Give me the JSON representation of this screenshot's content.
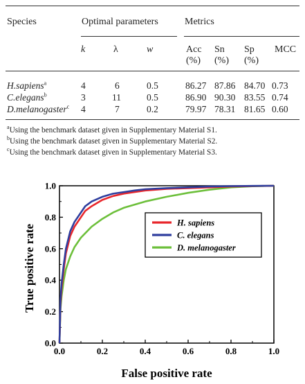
{
  "table": {
    "headers": {
      "species": "Species",
      "optimal_parameters": "Optimal parameters",
      "metrics": "Metrics"
    },
    "subheaders": {
      "k": "k",
      "lambda": "λ",
      "w": "w",
      "acc": [
        "Acc",
        "(%)"
      ],
      "sn": [
        "Sn",
        "(%)"
      ],
      "sp": [
        "Sp",
        "(%)"
      ],
      "mcc": "MCC"
    },
    "rows": [
      {
        "species": "H.sapiens",
        "sup": "a",
        "k": "4",
        "lambda": "6",
        "w": "0.5",
        "acc": "86.27",
        "sn": "87.86",
        "sp": "84.70",
        "mcc": "0.73"
      },
      {
        "species": "C.elegans",
        "sup": "b",
        "k": "3",
        "lambda": "11",
        "w": "0.5",
        "acc": "86.90",
        "sn": "90.30",
        "sp": "83.55",
        "mcc": "0.74"
      },
      {
        "species": "D.melanogaster",
        "sup": "c",
        "k": "4",
        "lambda": "7",
        "w": "0.2",
        "acc": "79.97",
        "sn": "78.31",
        "sp": "81.65",
        "mcc": "0.60"
      }
    ],
    "footnotes": [
      {
        "mark": "a",
        "text": "Using the benchmark dataset given in Supplementary Material S1."
      },
      {
        "mark": "b",
        "text": "Using the benchmark dataset given in Supplementary Material S2."
      },
      {
        "mark": "c",
        "text": "Using the benchmark dataset given in Supplementary Material S3."
      }
    ]
  },
  "chart_data": {
    "type": "line",
    "xlabel": "False positive rate",
    "ylabel": "True positive rate",
    "xlim": [
      0.0,
      1.0
    ],
    "ylim": [
      0.0,
      1.0
    ],
    "xticks": [
      "0.0",
      "0.2",
      "0.4",
      "0.6",
      "0.8",
      "1.0"
    ],
    "yticks": [
      "0.0",
      "0.2",
      "0.4",
      "0.6",
      "0.8",
      "1.0"
    ],
    "grid": false,
    "legend_position": "top-right",
    "series": [
      {
        "name": "H. sapiens",
        "color": "#e8262b",
        "x": [
          0,
          0.005,
          0.01,
          0.02,
          0.03,
          0.05,
          0.07,
          0.1,
          0.12,
          0.15,
          0.2,
          0.25,
          0.3,
          0.35,
          0.4,
          0.5,
          0.6,
          0.7,
          0.8,
          0.9,
          1.0
        ],
        "y": [
          0,
          0.25,
          0.35,
          0.47,
          0.57,
          0.68,
          0.74,
          0.8,
          0.84,
          0.87,
          0.91,
          0.935,
          0.95,
          0.96,
          0.97,
          0.98,
          0.985,
          0.99,
          0.995,
          0.998,
          1.0
        ]
      },
      {
        "name": "C. elegans",
        "color": "#2f3e9e",
        "x": [
          0,
          0.005,
          0.01,
          0.02,
          0.03,
          0.05,
          0.07,
          0.1,
          0.12,
          0.15,
          0.2,
          0.25,
          0.3,
          0.35,
          0.4,
          0.5,
          0.6,
          0.7,
          0.8,
          0.9,
          1.0
        ],
        "y": [
          0,
          0.28,
          0.38,
          0.5,
          0.6,
          0.71,
          0.77,
          0.83,
          0.87,
          0.9,
          0.93,
          0.95,
          0.96,
          0.97,
          0.978,
          0.985,
          0.99,
          0.995,
          0.998,
          0.999,
          1.0
        ]
      },
      {
        "name": "D. melanogaster",
        "color": "#6cbf3a",
        "x": [
          0,
          0.005,
          0.01,
          0.02,
          0.03,
          0.05,
          0.07,
          0.1,
          0.15,
          0.2,
          0.25,
          0.3,
          0.4,
          0.5,
          0.6,
          0.7,
          0.8,
          0.9,
          1.0
        ],
        "y": [
          0,
          0.22,
          0.3,
          0.4,
          0.47,
          0.55,
          0.61,
          0.67,
          0.74,
          0.79,
          0.83,
          0.86,
          0.9,
          0.93,
          0.955,
          0.975,
          0.99,
          0.997,
          1.0
        ]
      }
    ]
  }
}
